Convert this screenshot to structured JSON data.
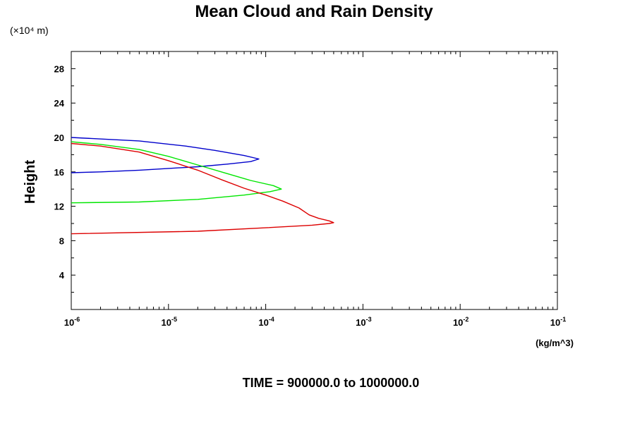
{
  "chart_data": {
    "type": "line",
    "title": "Mean Cloud and Rain Density",
    "y_scale_label": "(×10⁴ m)",
    "ylabel": "Height",
    "xlabel": "(kg/m^3)",
    "footer": "TIME = 900000.0 to 1000000.0",
    "x_scale": "log",
    "xlim": [
      1e-06,
      0.1
    ],
    "ylim": [
      0,
      30
    ],
    "x_tick_labels": [
      {
        "base": "10",
        "exp": "-6"
      },
      {
        "base": "10",
        "exp": "-5"
      },
      {
        "base": "10",
        "exp": "-4"
      },
      {
        "base": "10",
        "exp": "-3"
      },
      {
        "base": "10",
        "exp": "-2"
      },
      {
        "base": "10",
        "exp": "-1"
      }
    ],
    "y_ticks": [
      4,
      8,
      12,
      16,
      20,
      24,
      28
    ],
    "grid": false,
    "series": [
      {
        "color": "#0000cc",
        "points": [
          [
            1e-06,
            15.9
          ],
          [
            2e-06,
            16.0
          ],
          [
            5e-06,
            16.2
          ],
          [
            1e-05,
            16.4
          ],
          [
            2e-05,
            16.6
          ],
          [
            4e-05,
            16.9
          ],
          [
            7e-05,
            17.2
          ],
          [
            8.5e-05,
            17.5
          ],
          [
            6e-05,
            17.9
          ],
          [
            3e-05,
            18.5
          ],
          [
            1.5e-05,
            19.0
          ],
          [
            5e-06,
            19.6
          ],
          [
            1e-06,
            20.0
          ]
        ]
      },
      {
        "color": "#00e600",
        "points": [
          [
            1e-06,
            12.4
          ],
          [
            5e-06,
            12.5
          ],
          [
            2e-05,
            12.8
          ],
          [
            6e-05,
            13.3
          ],
          [
            0.00011,
            13.7
          ],
          [
            0.000145,
            14.0
          ],
          [
            0.00012,
            14.4
          ],
          [
            7e-05,
            15.0
          ],
          [
            4e-05,
            15.8
          ],
          [
            2e-05,
            16.8
          ],
          [
            1e-05,
            17.8
          ],
          [
            5e-06,
            18.6
          ],
          [
            2e-06,
            19.2
          ],
          [
            1e-06,
            19.5
          ]
        ]
      },
      {
        "color": "#dd0000",
        "points": [
          [
            1e-06,
            8.8
          ],
          [
            2e-05,
            9.1
          ],
          [
            0.0001,
            9.5
          ],
          [
            0.0003,
            9.8
          ],
          [
            0.00045,
            10.0
          ],
          [
            0.0005,
            10.1
          ],
          [
            0.00045,
            10.3
          ],
          [
            0.00035,
            10.6
          ],
          [
            0.00028,
            11.0
          ],
          [
            0.00022,
            11.8
          ],
          [
            0.00015,
            12.6
          ],
          [
            0.0001,
            13.3
          ],
          [
            6e-05,
            14.1
          ],
          [
            3.5e-05,
            15.1
          ],
          [
            2e-05,
            16.2
          ],
          [
            1e-05,
            17.3
          ],
          [
            5e-06,
            18.3
          ],
          [
            2e-06,
            19.0
          ],
          [
            1e-06,
            19.3
          ]
        ]
      }
    ]
  }
}
